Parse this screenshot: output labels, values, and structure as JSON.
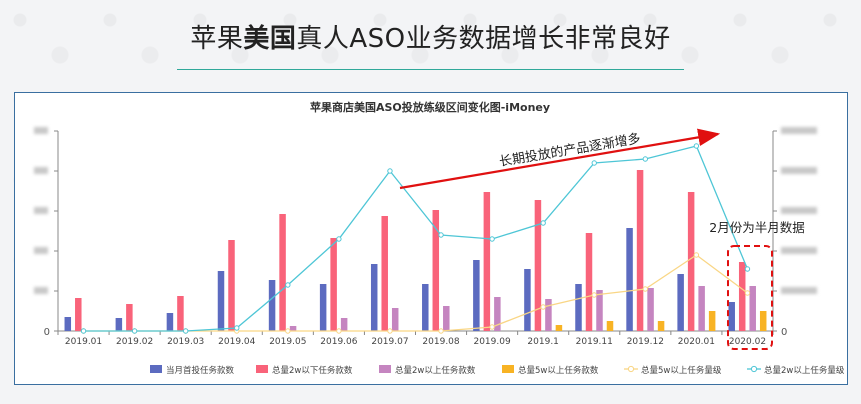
{
  "headline": {
    "pre": "苹果",
    "bold": "美国",
    "post": "真人ASO业务数据增长非常良好"
  },
  "chart_data": {
    "type": "bar",
    "title": "苹果商店美国ASO投放练级区间变化图-iMoney",
    "categories": [
      "2019.01",
      "2019.02",
      "2019.03",
      "2019.04",
      "2019.05",
      "2019.06",
      "2019.07",
      "2019.08",
      "2019.09",
      "2019.1",
      "2019.11",
      "2019.12",
      "2020.01",
      "2020.02"
    ],
    "series": [
      {
        "name": "当月首投任务款数",
        "kind": "bar",
        "axis": "left",
        "color": "#5c6bc0",
        "values": [
          7,
          6.5,
          9,
          30,
          25.5,
          23.5,
          33.5,
          23.5,
          35.5,
          31,
          23.5,
          51.5,
          28.5,
          14.5
        ]
      },
      {
        "name": "总量2w以下任务款数",
        "kind": "bar",
        "axis": "left",
        "color": "#f9637a",
        "values": [
          16.5,
          13.5,
          17.5,
          45.5,
          58.5,
          46.5,
          57.5,
          60.5,
          69.5,
          65.5,
          49,
          80.5,
          69.5,
          34.5
        ]
      },
      {
        "name": "总量2w以上任务款数",
        "kind": "bar",
        "axis": "left",
        "color": "#c585c0",
        "values": [
          0,
          0,
          0,
          0,
          2.5,
          6.5,
          11.5,
          12.5,
          17,
          16,
          20.5,
          21.5,
          22.5,
          22.5
        ]
      },
      {
        "name": "总量5w以上任务款数",
        "kind": "bar",
        "axis": "left",
        "color": "#f8b324",
        "values": [
          0,
          0,
          0,
          0,
          0,
          0,
          0,
          0,
          0,
          3,
          5,
          5,
          10,
          10
        ]
      },
      {
        "name": "总量5w以上任务量级",
        "kind": "line",
        "axis": "right",
        "color": "#f9d685",
        "values": [
          0,
          0,
          0,
          0,
          0,
          0,
          0,
          0,
          4,
          24,
          36,
          42,
          76,
          38
        ]
      },
      {
        "name": "总量2w以上任务量级",
        "kind": "line",
        "axis": "right",
        "color": "#4ec6d6",
        "values": [
          0,
          0,
          0,
          3,
          46,
          92,
          160,
          96,
          92,
          108,
          168,
          172,
          185,
          62
        ]
      }
    ],
    "ylim_left": [
      0,
      100
    ],
    "ylim_right": [
      0,
      200
    ],
    "annotations": {
      "trend": "长期投放的产品逐渐增多",
      "note": "2月份为半月数据"
    },
    "grid": false,
    "legend_position": "bottom"
  }
}
